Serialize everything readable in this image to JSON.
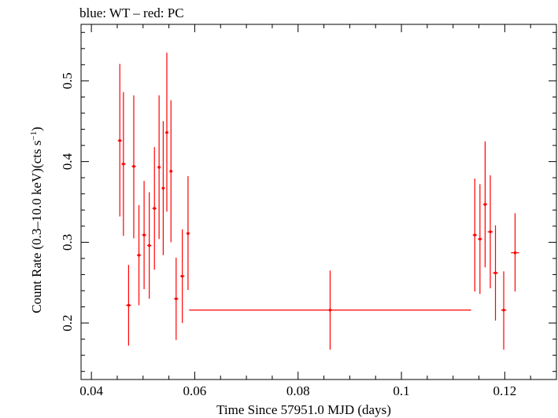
{
  "chart_data": {
    "type": "scatter",
    "title": "blue: WT – red: PC",
    "xlabel": "Time Since 57951.0 MJD (days)",
    "ylabel_main": "Count Rate (0.3–10.0 keV)(cts s",
    "ylabel_sup": "−1",
    "ylabel_end": ")",
    "xlim": [
      0.038,
      0.13
    ],
    "ylim": [
      0.13,
      0.57
    ],
    "xticks": [
      0.04,
      0.06,
      0.08,
      0.1,
      0.12
    ],
    "xtick_labels": [
      "0.04",
      "0.06",
      "0.08",
      "0.1",
      "0.12"
    ],
    "yticks": [
      0.2,
      0.3,
      0.4,
      0.5
    ],
    "ytick_labels": [
      "0.2",
      "0.3",
      "0.4",
      "0.5"
    ],
    "grid": false,
    "series": [
      {
        "color": "#ff0000",
        "points": [
          {
            "x": 0.0455,
            "y": 0.426,
            "xerr": 0.0004,
            "ylo": 0.332,
            "yhi": 0.521
          },
          {
            "x": 0.0462,
            "y": 0.397,
            "xerr": 0.0004,
            "ylo": 0.308,
            "yhi": 0.486
          },
          {
            "x": 0.0472,
            "y": 0.222,
            "xerr": 0.0005,
            "ylo": 0.172,
            "yhi": 0.272
          },
          {
            "x": 0.0482,
            "y": 0.394,
            "xerr": 0.0004,
            "ylo": 0.305,
            "yhi": 0.482
          },
          {
            "x": 0.0492,
            "y": 0.284,
            "xerr": 0.0004,
            "ylo": 0.222,
            "yhi": 0.346
          },
          {
            "x": 0.0502,
            "y": 0.309,
            "xerr": 0.0004,
            "ylo": 0.242,
            "yhi": 0.376
          },
          {
            "x": 0.0512,
            "y": 0.296,
            "xerr": 0.0004,
            "ylo": 0.23,
            "yhi": 0.362
          },
          {
            "x": 0.0522,
            "y": 0.342,
            "xerr": 0.0004,
            "ylo": 0.266,
            "yhi": 0.418
          },
          {
            "x": 0.0531,
            "y": 0.393,
            "xerr": 0.0003,
            "ylo": 0.304,
            "yhi": 0.482
          },
          {
            "x": 0.0539,
            "y": 0.367,
            "xerr": 0.0003,
            "ylo": 0.284,
            "yhi": 0.45
          },
          {
            "x": 0.0546,
            "y": 0.436,
            "xerr": 0.0003,
            "ylo": 0.338,
            "yhi": 0.535
          },
          {
            "x": 0.0554,
            "y": 0.388,
            "xerr": 0.0003,
            "ylo": 0.3,
            "yhi": 0.476
          },
          {
            "x": 0.0564,
            "y": 0.23,
            "xerr": 0.0004,
            "ylo": 0.179,
            "yhi": 0.281
          },
          {
            "x": 0.0576,
            "y": 0.258,
            "xerr": 0.0004,
            "ylo": 0.2,
            "yhi": 0.316
          },
          {
            "x": 0.0587,
            "y": 0.311,
            "xerr": 0.0003,
            "ylo": 0.241,
            "yhi": 0.382
          },
          {
            "x": 0.0862,
            "y": 0.216,
            "xerr": 0.0273,
            "ylo": 0.167,
            "yhi": 0.265
          },
          {
            "x": 0.1142,
            "y": 0.309,
            "xerr": 0.0004,
            "ylo": 0.239,
            "yhi": 0.379
          },
          {
            "x": 0.1152,
            "y": 0.304,
            "xerr": 0.0004,
            "ylo": 0.236,
            "yhi": 0.372
          },
          {
            "x": 0.1162,
            "y": 0.347,
            "xerr": 0.0004,
            "ylo": 0.269,
            "yhi": 0.425
          },
          {
            "x": 0.1172,
            "y": 0.313,
            "xerr": 0.0005,
            "ylo": 0.243,
            "yhi": 0.383
          },
          {
            "x": 0.1182,
            "y": 0.262,
            "xerr": 0.0005,
            "ylo": 0.203,
            "yhi": 0.321
          },
          {
            "x": 0.1198,
            "y": 0.216,
            "xerr": 0.0005,
            "ylo": 0.167,
            "yhi": 0.264
          },
          {
            "x": 0.122,
            "y": 0.287,
            "xerr": 0.0008,
            "ylo": 0.239,
            "yhi": 0.336
          }
        ]
      }
    ]
  }
}
